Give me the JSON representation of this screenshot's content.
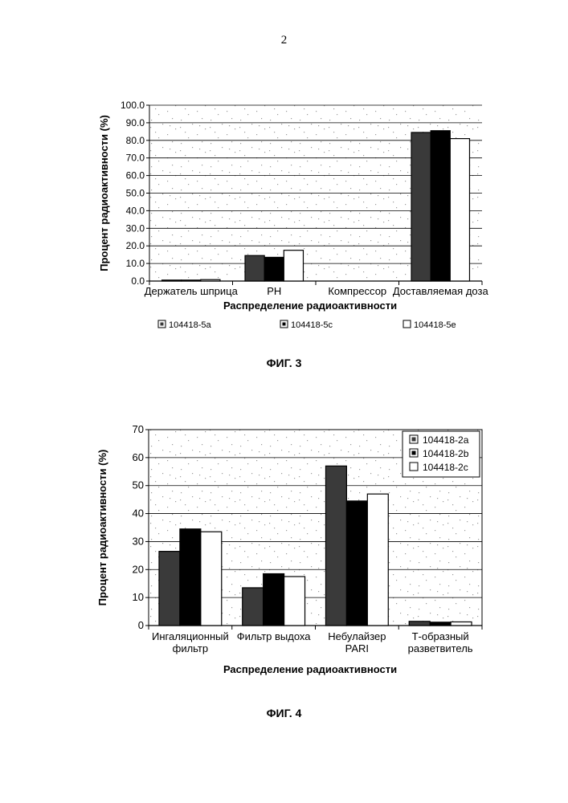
{
  "page_number": "2",
  "figures": [
    {
      "caption": "ФИГ. 3"
    },
    {
      "caption": "ФИГ. 4"
    }
  ],
  "chart_data": [
    {
      "type": "bar",
      "title": "",
      "ylabel": "Процент радиоактивности (%)",
      "xlabel": "Распределение радиоактивности",
      "ylim": [
        0,
        100
      ],
      "yticks": [
        "0.0",
        "10.0",
        "20.0",
        "30.0",
        "40.0",
        "50.0",
        "60.0",
        "70.0",
        "80.0",
        "90.0",
        "100.0"
      ],
      "categories": [
        "Держатель шприца",
        "PH",
        "Компрессор",
        "Доставляемая доза"
      ],
      "series": [
        {
          "name": "104418-5a",
          "values": [
            0.4,
            14.5,
            0,
            84.5
          ],
          "color": "#3a3a3a"
        },
        {
          "name": "104418-5c",
          "values": [
            0.1,
            13.5,
            0,
            85.5
          ],
          "color": "#000000"
        },
        {
          "name": "104418-5e",
          "values": [
            0.8,
            17.5,
            0,
            81.0
          ],
          "color": "#ffffff"
        }
      ],
      "grid": true,
      "legend": "bottom"
    },
    {
      "type": "bar",
      "title": "",
      "ylabel": "Процент радиоактивности (%)",
      "xlabel": "Распределение радиоактивности",
      "ylim": [
        0,
        70
      ],
      "yticks": [
        "0",
        "10",
        "20",
        "30",
        "40",
        "50",
        "60",
        "70"
      ],
      "categories": [
        [
          "Ингаляционный",
          "фильтр"
        ],
        [
          "Фильтр выдоха"
        ],
        [
          "Небулайзер",
          "PARI"
        ],
        [
          "Т-образный",
          "разветвитель"
        ]
      ],
      "series": [
        {
          "name": "104418-2a",
          "values": [
            26.5,
            13.5,
            57.0,
            1.5
          ],
          "color": "#3a3a3a"
        },
        {
          "name": "104418-2b",
          "values": [
            34.5,
            18.5,
            44.5,
            1.2
          ],
          "color": "#000000"
        },
        {
          "name": "104418-2c",
          "values": [
            33.5,
            17.5,
            47.0,
            1.3
          ],
          "color": "#ffffff"
        }
      ],
      "grid": true,
      "legend": "top-right"
    }
  ]
}
